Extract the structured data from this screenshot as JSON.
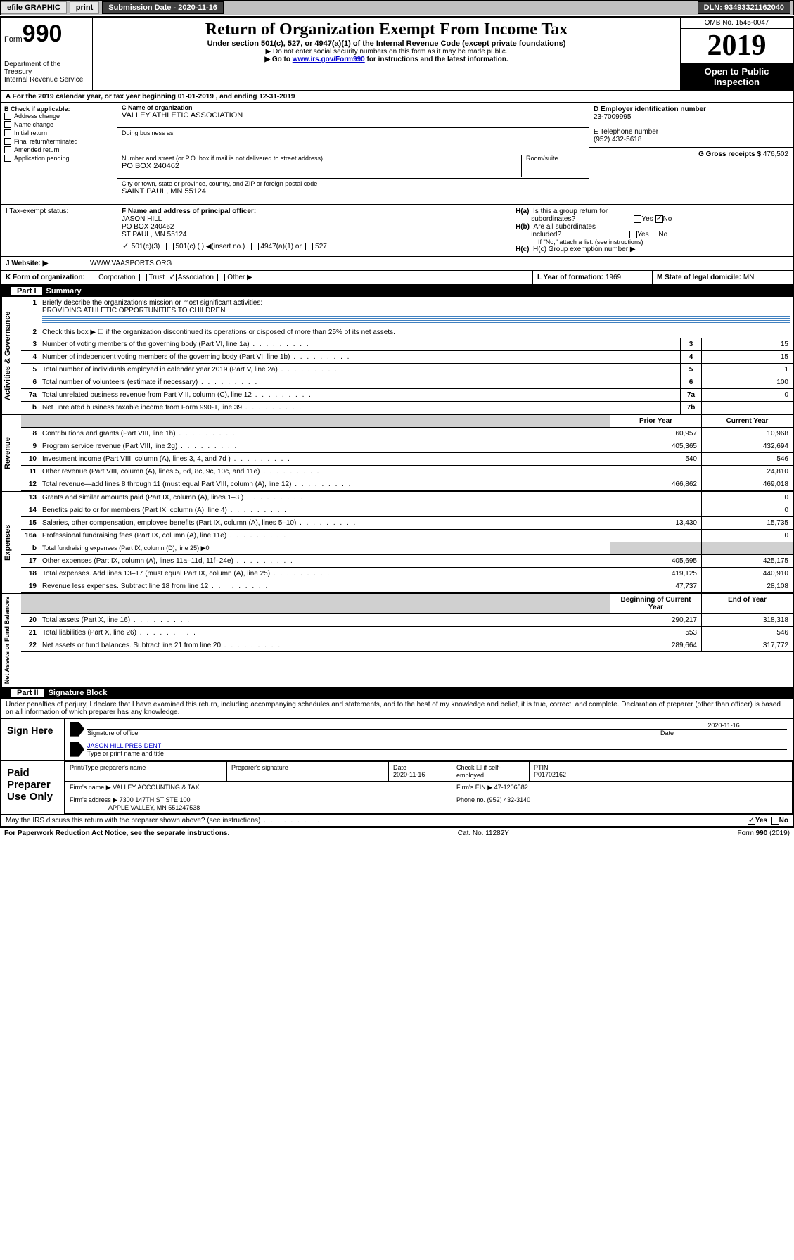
{
  "header_bar": {
    "efile": "efile GRAPHIC",
    "print": "print",
    "submission": "Submission Date - 2020-11-16",
    "dln": "DLN: 93493321162040"
  },
  "form": {
    "form_label": "Form",
    "form_number": "990",
    "dept": "Department of the Treasury\nInternal Revenue Service",
    "title": "Return of Organization Exempt From Income Tax",
    "subtitle": "Under section 501(c), 527, or 4947(a)(1) of the Internal Revenue Code (except private foundations)",
    "note1": "▶ Do not enter social security numbers on this form as it may be made public.",
    "note2_pre": "▶ Go to ",
    "note2_link": "www.irs.gov/Form990",
    "note2_post": " for instructions and the latest information.",
    "omb": "OMB No. 1545-0047",
    "year": "2019",
    "open_public": "Open to Public Inspection"
  },
  "row_a": "A For the 2019 calendar year, or tax year beginning 01-01-2019   , and ending 12-31-2019",
  "section_b": {
    "b_label": "B Check if applicable:",
    "checks": [
      "Address change",
      "Name change",
      "Initial return",
      "Final return/terminated",
      "Amended return",
      "Application pending"
    ],
    "c_label": "C Name of organization",
    "org_name": "VALLEY ATHLETIC ASSOCIATION",
    "dba_label": "Doing business as",
    "addr_label": "Number and street (or P.O. box if mail is not delivered to street address)",
    "room_label": "Room/suite",
    "addr": "PO BOX 240462",
    "city_label": "City or town, state or province, country, and ZIP or foreign postal code",
    "city": "SAINT PAUL, MN  55124",
    "d_label": "D Employer identification number",
    "ein": "23-7009995",
    "e_label": "E Telephone number",
    "phone": "(952) 432-5618",
    "g_label": "G Gross receipts $",
    "g_val": "476,502",
    "f_label": "F  Name and address of principal officer:",
    "f_name": "JASON HILL",
    "f_addr1": "PO BOX 240462",
    "f_addr2": "ST PAUL, MN  55124",
    "ha": "H(a)  Is this a group return for subordinates?",
    "hb": "H(b)  Are all subordinates included?",
    "hb_note": "If \"No,\" attach a list. (see instructions)",
    "hc": "H(c)  Group exemption number ▶",
    "yes": "Yes",
    "no": "No"
  },
  "row_i": {
    "label": "I    Tax-exempt status:",
    "opt1": "501(c)(3)",
    "opt2": "501(c) (  )  ◀(insert no.)",
    "opt3": "4947(a)(1) or",
    "opt4": "527"
  },
  "row_j": {
    "label": "J    Website: ▶",
    "url": "WWW.VAASPORTS.ORG"
  },
  "row_k": {
    "label": "K Form of organization:",
    "opts": [
      "Corporation",
      "Trust",
      "Association",
      "Other ▶"
    ],
    "l_label": "L Year of formation:",
    "l_val": "1969",
    "m_label": "M State of legal domicile:",
    "m_val": "MN"
  },
  "part1": {
    "header": "Part I",
    "title": "Summary",
    "q1": "Briefly describe the organization's mission or most significant activities:",
    "q1_ans": "PROVIDING ATHLETIC OPPORTUNITIES TO CHILDREN",
    "q2": "Check this box ▶ ☐  if the organization discontinued its operations or disposed of more than 25% of its net assets.",
    "rows_top": [
      {
        "n": "3",
        "t": "Number of voting members of the governing body (Part VI, line 1a)",
        "box": "3",
        "v": "15"
      },
      {
        "n": "4",
        "t": "Number of independent voting members of the governing body (Part VI, line 1b)",
        "box": "4",
        "v": "15"
      },
      {
        "n": "5",
        "t": "Total number of individuals employed in calendar year 2019 (Part V, line 2a)",
        "box": "5",
        "v": "1"
      },
      {
        "n": "6",
        "t": "Total number of volunteers (estimate if necessary)",
        "box": "6",
        "v": "100"
      },
      {
        "n": "7a",
        "t": "Total unrelated business revenue from Part VIII, column (C), line 12",
        "box": "7a",
        "v": "0"
      },
      {
        "n": "b",
        "t": "Net unrelated business taxable income from Form 990-T, line 39",
        "box": "7b",
        "v": ""
      }
    ],
    "col_prior": "Prior Year",
    "col_current": "Current Year",
    "revenue": [
      {
        "n": "8",
        "t": "Contributions and grants (Part VIII, line 1h)",
        "p": "60,957",
        "c": "10,968"
      },
      {
        "n": "9",
        "t": "Program service revenue (Part VIII, line 2g)",
        "p": "405,365",
        "c": "432,694"
      },
      {
        "n": "10",
        "t": "Investment income (Part VIII, column (A), lines 3, 4, and 7d )",
        "p": "540",
        "c": "546"
      },
      {
        "n": "11",
        "t": "Other revenue (Part VIII, column (A), lines 5, 6d, 8c, 9c, 10c, and 11e)",
        "p": "",
        "c": "24,810"
      },
      {
        "n": "12",
        "t": "Total revenue—add lines 8 through 11 (must equal Part VIII, column (A), line 12)",
        "p": "466,862",
        "c": "469,018"
      }
    ],
    "expenses": [
      {
        "n": "13",
        "t": "Grants and similar amounts paid (Part IX, column (A), lines 1–3 )",
        "p": "",
        "c": "0"
      },
      {
        "n": "14",
        "t": "Benefits paid to or for members (Part IX, column (A), line 4)",
        "p": "",
        "c": "0"
      },
      {
        "n": "15",
        "t": "Salaries, other compensation, employee benefits (Part IX, column (A), lines 5–10)",
        "p": "13,430",
        "c": "15,735"
      },
      {
        "n": "16a",
        "t": "Professional fundraising fees (Part IX, column (A), line 11e)",
        "p": "",
        "c": "0"
      },
      {
        "n": "b",
        "t": "Total fundraising expenses (Part IX, column (D), line 25) ▶0",
        "p": "grey",
        "c": "grey"
      },
      {
        "n": "17",
        "t": "Other expenses (Part IX, column (A), lines 11a–11d, 11f–24e)",
        "p": "405,695",
        "c": "425,175"
      },
      {
        "n": "18",
        "t": "Total expenses. Add lines 13–17 (must equal Part IX, column (A), line 25)",
        "p": "419,125",
        "c": "440,910"
      },
      {
        "n": "19",
        "t": "Revenue less expenses. Subtract line 18 from line 12",
        "p": "47,737",
        "c": "28,108"
      }
    ],
    "col_begin": "Beginning of Current Year",
    "col_end": "End of Year",
    "netassets": [
      {
        "n": "20",
        "t": "Total assets (Part X, line 16)",
        "p": "290,217",
        "c": "318,318"
      },
      {
        "n": "21",
        "t": "Total liabilities (Part X, line 26)",
        "p": "553",
        "c": "546"
      },
      {
        "n": "22",
        "t": "Net assets or fund balances. Subtract line 21 from line 20",
        "p": "289,664",
        "c": "317,772"
      }
    ],
    "vert_labels": {
      "gov": "Activities & Governance",
      "rev": "Revenue",
      "exp": "Expenses",
      "net": "Net Assets or Fund Balances"
    }
  },
  "part2": {
    "header": "Part II",
    "title": "Signature Block",
    "perjury": "Under penalties of perjury, I declare that I have examined this return, including accompanying schedules and statements, and to the best of my knowledge and belief, it is true, correct, and complete. Declaration of preparer (other than officer) is based on all information of which preparer has any knowledge.",
    "sign_here": "Sign Here",
    "sig_officer": "Signature of officer",
    "date": "Date",
    "date_val": "2020-11-16",
    "name_title": "JASON HILL PRESIDENT",
    "type_name": "Type or print name and title",
    "paid_label": "Paid Preparer Use Only",
    "prep_name_label": "Print/Type preparer's name",
    "prep_sig_label": "Preparer's signature",
    "prep_date_label": "Date",
    "prep_date": "2020-11-16",
    "check_self": "Check ☐ if self-employed",
    "ptin_label": "PTIN",
    "ptin": "P01702162",
    "firm_name_label": "Firm's name     ▶",
    "firm_name": "VALLEY ACCOUNTING & TAX",
    "firm_ein_label": "Firm's EIN ▶",
    "firm_ein": "47-1206582",
    "firm_addr_label": "Firm's address ▶",
    "firm_addr1": "7300 147TH ST STE 100",
    "firm_addr2": "APPLE VALLEY, MN  551247538",
    "firm_phone_label": "Phone no.",
    "firm_phone": "(952) 432-3140",
    "discuss": "May the IRS discuss this return with the preparer shown above? (see instructions)"
  },
  "footer": {
    "pra": "For Paperwork Reduction Act Notice, see the separate instructions.",
    "cat": "Cat. No. 11282Y",
    "form": "Form 990 (2019)"
  },
  "colors": {
    "link": "#0000cc",
    "grey": "#d0d0d0",
    "line_blue": "#4080c0"
  }
}
